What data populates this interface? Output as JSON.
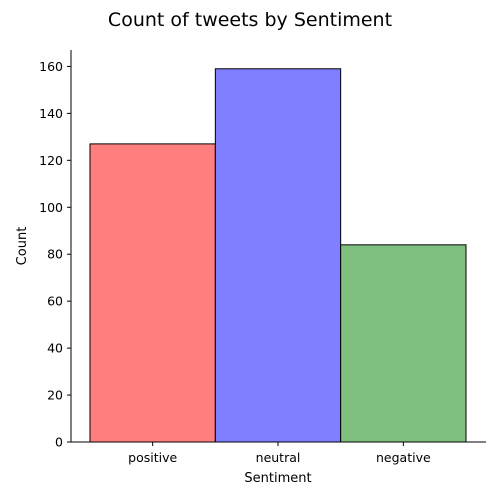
{
  "chart_data": {
    "type": "bar",
    "title": "Count of tweets by Sentiment",
    "xlabel": "Sentiment",
    "ylabel": "Count",
    "categories": [
      "positive",
      "neutral",
      "negative"
    ],
    "values": [
      127,
      159,
      84
    ],
    "colors": [
      "#ff7f7f",
      "#7f7fff",
      "#7fbf7f"
    ],
    "edge_color": "#000000",
    "ylim": [
      0,
      167
    ],
    "yticks": [
      0,
      20,
      40,
      60,
      80,
      100,
      120,
      140,
      160
    ],
    "grid": false,
    "legend": "none"
  }
}
